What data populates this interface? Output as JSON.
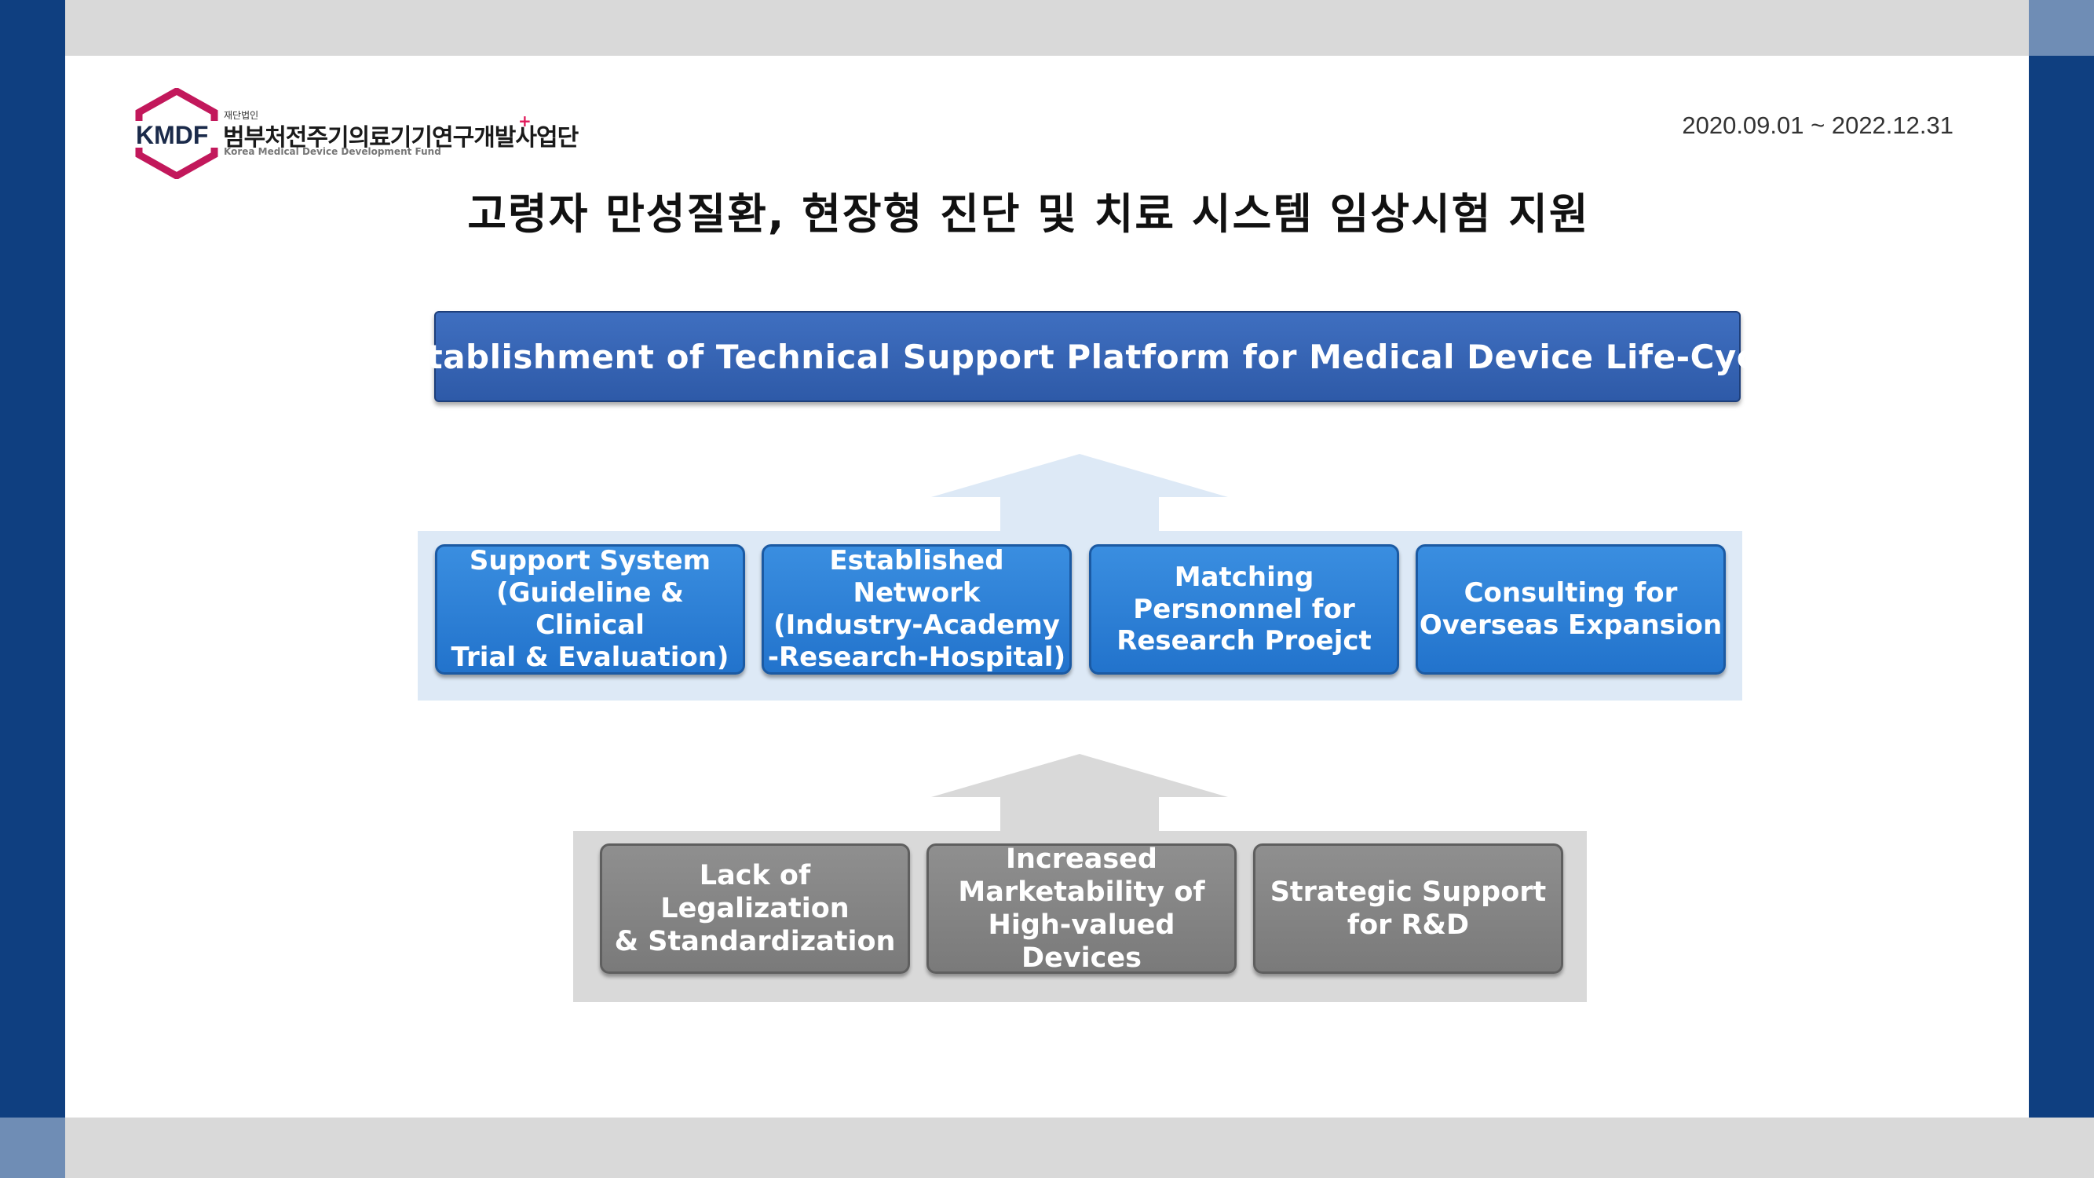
{
  "header": {
    "logo": {
      "brand": "KMDF",
      "small_label": "재단법인",
      "korean_name": "범부처전주기의료기기연구개발사업단",
      "english_name": "Korea Medical Device Development Fund"
    },
    "date_range": "2020.09.01 ~ 2022.12.31"
  },
  "title": "고령자 만성질환, 현장형 진단 및 치료 시스템 임상시험 지원",
  "platform": {
    "label": "Establishment of Technical Support Platform for Medical Device Life-Cycle"
  },
  "middle_tier": [
    {
      "label": "Support System\n(Guideline & Clinical\nTrial & Evaluation)"
    },
    {
      "label": "Established Network\n(Industry-Academy\n-Research-Hospital)"
    },
    {
      "label": "Matching\nPersnonnel for\nResearch Proejct"
    },
    {
      "label": "Consulting for\nOverseas Expansion"
    }
  ],
  "bottom_tier": [
    {
      "label": "Lack of\nLegalization\n& Standardization"
    },
    {
      "label": "Increased\nMarketability of\nHigh-valued Devices"
    },
    {
      "label": "Strategic Support\nfor R&D"
    }
  ],
  "colors": {
    "frame_blue": "#0f3f80",
    "frame_gray": "#d9d9d9",
    "logo_magenta": "#c2185b",
    "card_blue": "#2a7fd6",
    "card_gray": "#858585",
    "arrow_light_blue": "#dde9f6",
    "arrow_gray": "#d9d9d9"
  }
}
